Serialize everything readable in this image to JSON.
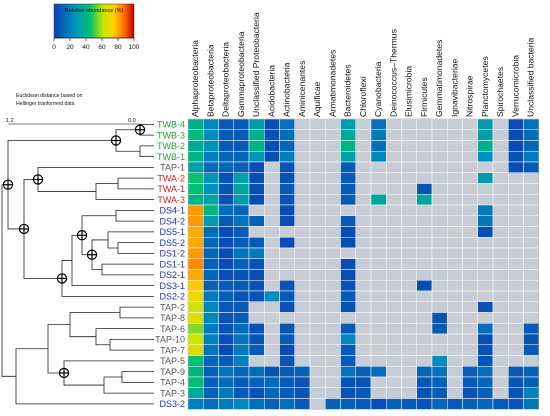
{
  "legend": {
    "title": "Relative abundance (%)",
    "ticks": [
      "0",
      "20",
      "40",
      "60",
      "80",
      "100"
    ],
    "colors": [
      "#c00000",
      "#ff6a00",
      "#ffd000",
      "#c8e600",
      "#00c070",
      "#0080c8",
      "#0a40b0"
    ]
  },
  "tree_caption": {
    "line1": "Euclidean distance based on",
    "line2": "Hellinger tranformed data",
    "scale_left": "1.2",
    "scale_right": "0.0"
  },
  "chart_data": {
    "type": "heatmap",
    "title": "",
    "value_label": "Relative abundance (%)",
    "range": [
      0,
      100
    ],
    "columns": [
      "Alphaproteobacteria",
      "Betaproteobacteria",
      "Deltaproteobacteria",
      "Gammaproteobacteria",
      "Unclassified Proteobacteria",
      "Acidobacteria",
      "Actinobacteria",
      "Aminicenantes",
      "Aquificae",
      "Armatimonadetes",
      "Bacteroidetes",
      "Chloroflexi",
      "Cyanobacteria",
      "Deinococcus–Thermus",
      "Elusimicrobia",
      "Firmicutes",
      "Gemmatimonadetes",
      "Ignavibacteriae",
      "Nitrospirae",
      "Planctomycetes",
      "Spirochaetes",
      "Verrucomicrobia",
      "Unclassified bacteria"
    ],
    "rows": [
      {
        "label": "TWB-4",
        "group": "TWB",
        "values": [
          38,
          22,
          8,
          8,
          30,
          5,
          15,
          0,
          0,
          0,
          30,
          0,
          15,
          0,
          0,
          0,
          0,
          0,
          0,
          30,
          0,
          4,
          15
        ]
      },
      {
        "label": "TWB-3",
        "group": "TWB",
        "values": [
          42,
          24,
          8,
          8,
          38,
          5,
          15,
          0,
          0,
          0,
          35,
          0,
          18,
          0,
          0,
          0,
          0,
          0,
          0,
          32,
          0,
          4,
          14
        ]
      },
      {
        "label": "TWB-2",
        "group": "TWB",
        "values": [
          36,
          26,
          8,
          8,
          40,
          5,
          12,
          0,
          0,
          0,
          40,
          0,
          15,
          0,
          0,
          0,
          0,
          0,
          0,
          38,
          0,
          4,
          12
        ]
      },
      {
        "label": "TWB-1",
        "group": "TWB",
        "values": [
          40,
          20,
          12,
          12,
          28,
          5,
          20,
          0,
          0,
          0,
          32,
          0,
          22,
          0,
          0,
          0,
          0,
          0,
          0,
          25,
          0,
          5,
          18
        ]
      },
      {
        "label": "TAP-1",
        "group": "TAP",
        "values": [
          32,
          14,
          12,
          10,
          4,
          0,
          6,
          0,
          0,
          0,
          8,
          0,
          0,
          0,
          0,
          0,
          0,
          0,
          0,
          0,
          0,
          4,
          8
        ]
      },
      {
        "label": "TWA-2",
        "group": "TWA",
        "values": [
          46,
          28,
          6,
          32,
          4,
          0,
          6,
          0,
          0,
          0,
          8,
          0,
          0,
          0,
          0,
          0,
          0,
          0,
          0,
          30,
          0,
          0,
          0
        ]
      },
      {
        "label": "TWA-1",
        "group": "TWA",
        "values": [
          44,
          26,
          6,
          34,
          4,
          0,
          8,
          0,
          0,
          0,
          8,
          0,
          0,
          0,
          0,
          6,
          0,
          0,
          0,
          0,
          0,
          0,
          0
        ]
      },
      {
        "label": "TWA-3",
        "group": "TWA",
        "values": [
          40,
          32,
          6,
          30,
          4,
          0,
          6,
          0,
          0,
          0,
          8,
          0,
          34,
          0,
          0,
          34,
          0,
          0,
          0,
          0,
          0,
          0,
          0
        ]
      },
      {
        "label": "DS4-1",
        "group": "DS",
        "values": [
          82,
          40,
          14,
          12,
          0,
          0,
          4,
          0,
          0,
          0,
          0,
          0,
          0,
          0,
          0,
          0,
          0,
          0,
          0,
          18,
          0,
          0,
          0
        ]
      },
      {
        "label": "DS4-2",
        "group": "DS",
        "values": [
          82,
          30,
          8,
          16,
          10,
          0,
          4,
          0,
          0,
          0,
          8,
          0,
          0,
          0,
          0,
          0,
          0,
          0,
          0,
          16,
          0,
          0,
          0
        ]
      },
      {
        "label": "DS5-1",
        "group": "DS",
        "values": [
          80,
          14,
          4,
          8,
          0,
          0,
          0,
          0,
          0,
          0,
          4,
          0,
          0,
          0,
          0,
          0,
          0,
          0,
          0,
          4,
          0,
          0,
          0
        ]
      },
      {
        "label": "DS5-2",
        "group": "DS",
        "values": [
          80,
          12,
          4,
          8,
          8,
          0,
          4,
          0,
          0,
          0,
          4,
          0,
          0,
          0,
          0,
          0,
          0,
          0,
          0,
          0,
          0,
          0,
          0
        ]
      },
      {
        "label": "DS1-2",
        "group": "DS",
        "values": [
          82,
          12,
          4,
          16,
          18,
          0,
          0,
          0,
          0,
          0,
          0,
          0,
          0,
          0,
          0,
          0,
          0,
          0,
          0,
          0,
          0,
          0,
          0
        ]
      },
      {
        "label": "DS1-1",
        "group": "DS",
        "values": [
          84,
          10,
          4,
          10,
          6,
          0,
          0,
          0,
          0,
          0,
          4,
          0,
          0,
          0,
          0,
          0,
          0,
          0,
          0,
          0,
          0,
          0,
          0
        ]
      },
      {
        "label": "DS2-1",
        "group": "DS",
        "values": [
          80,
          12,
          4,
          6,
          4,
          0,
          0,
          0,
          0,
          0,
          4,
          0,
          0,
          0,
          0,
          0,
          0,
          0,
          0,
          0,
          0,
          0,
          0
        ]
      },
      {
        "label": "DS3-1",
        "group": "DS",
        "values": [
          76,
          10,
          8,
          8,
          6,
          0,
          6,
          0,
          0,
          0,
          6,
          0,
          0,
          0,
          0,
          4,
          0,
          0,
          0,
          0,
          0,
          0,
          0
        ]
      },
      {
        "label": "DS2-2",
        "group": "DS",
        "values": [
          70,
          18,
          10,
          6,
          6,
          24,
          8,
          0,
          0,
          0,
          8,
          0,
          0,
          0,
          0,
          0,
          0,
          0,
          0,
          0,
          0,
          0,
          0
        ]
      },
      {
        "label": "TAP-2",
        "group": "TAP",
        "values": [
          64,
          22,
          8,
          8,
          0,
          0,
          6,
          0,
          0,
          0,
          6,
          0,
          0,
          0,
          0,
          0,
          0,
          0,
          0,
          6,
          0,
          0,
          0
        ]
      },
      {
        "label": "TAP-8",
        "group": "TAP",
        "values": [
          68,
          22,
          6,
          8,
          0,
          0,
          0,
          0,
          0,
          0,
          0,
          0,
          0,
          0,
          0,
          0,
          6,
          0,
          0,
          0,
          0,
          0,
          0
        ]
      },
      {
        "label": "TAP-6",
        "group": "TAP",
        "values": [
          56,
          18,
          6,
          14,
          6,
          0,
          6,
          0,
          0,
          0,
          8,
          0,
          0,
          0,
          0,
          0,
          8,
          0,
          0,
          14,
          0,
          0,
          8
        ]
      },
      {
        "label": "TAP-10",
        "group": "TAP",
        "values": [
          62,
          20,
          4,
          16,
          6,
          0,
          8,
          0,
          0,
          0,
          22,
          0,
          0,
          0,
          0,
          0,
          0,
          0,
          0,
          4,
          0,
          0,
          6
        ]
      },
      {
        "label": "TAP-7",
        "group": "TAP",
        "values": [
          68,
          16,
          4,
          18,
          8,
          0,
          4,
          0,
          0,
          0,
          8,
          0,
          0,
          0,
          0,
          0,
          0,
          0,
          0,
          6,
          0,
          0,
          8
        ]
      },
      {
        "label": "TAP-5",
        "group": "TAP",
        "values": [
          44,
          12,
          8,
          20,
          0,
          0,
          6,
          0,
          0,
          0,
          8,
          0,
          0,
          0,
          0,
          0,
          24,
          0,
          0,
          6,
          0,
          0,
          0
        ]
      },
      {
        "label": "TAP-9",
        "group": "TAP",
        "values": [
          40,
          10,
          16,
          12,
          14,
          6,
          8,
          10,
          0,
          0,
          16,
          10,
          14,
          0,
          0,
          12,
          16,
          0,
          10,
          14,
          0,
          8,
          10
        ]
      },
      {
        "label": "TAP-4",
        "group": "TAP",
        "values": [
          44,
          10,
          14,
          8,
          10,
          14,
          8,
          6,
          0,
          0,
          6,
          6,
          0,
          0,
          0,
          8,
          10,
          0,
          8,
          12,
          0,
          6,
          10
        ]
      },
      {
        "label": "TAP-3",
        "group": "TAP",
        "values": [
          36,
          10,
          18,
          8,
          6,
          12,
          8,
          6,
          0,
          0,
          6,
          8,
          0,
          0,
          0,
          6,
          8,
          0,
          6,
          10,
          0,
          6,
          20
        ]
      },
      {
        "label": "DS3-2",
        "group": "DS",
        "values": [
          20,
          14,
          18,
          22,
          14,
          10,
          14,
          8,
          0,
          10,
          10,
          8,
          4,
          10,
          8,
          6,
          12,
          8,
          10,
          12,
          8,
          6,
          16
        ]
      }
    ],
    "group_colors": {
      "TWB": "#2e9e3a",
      "TWA": "#d62020",
      "TAP": "#555555",
      "DS": "#2233aa"
    },
    "zero_color": "#c8ccd4"
  }
}
